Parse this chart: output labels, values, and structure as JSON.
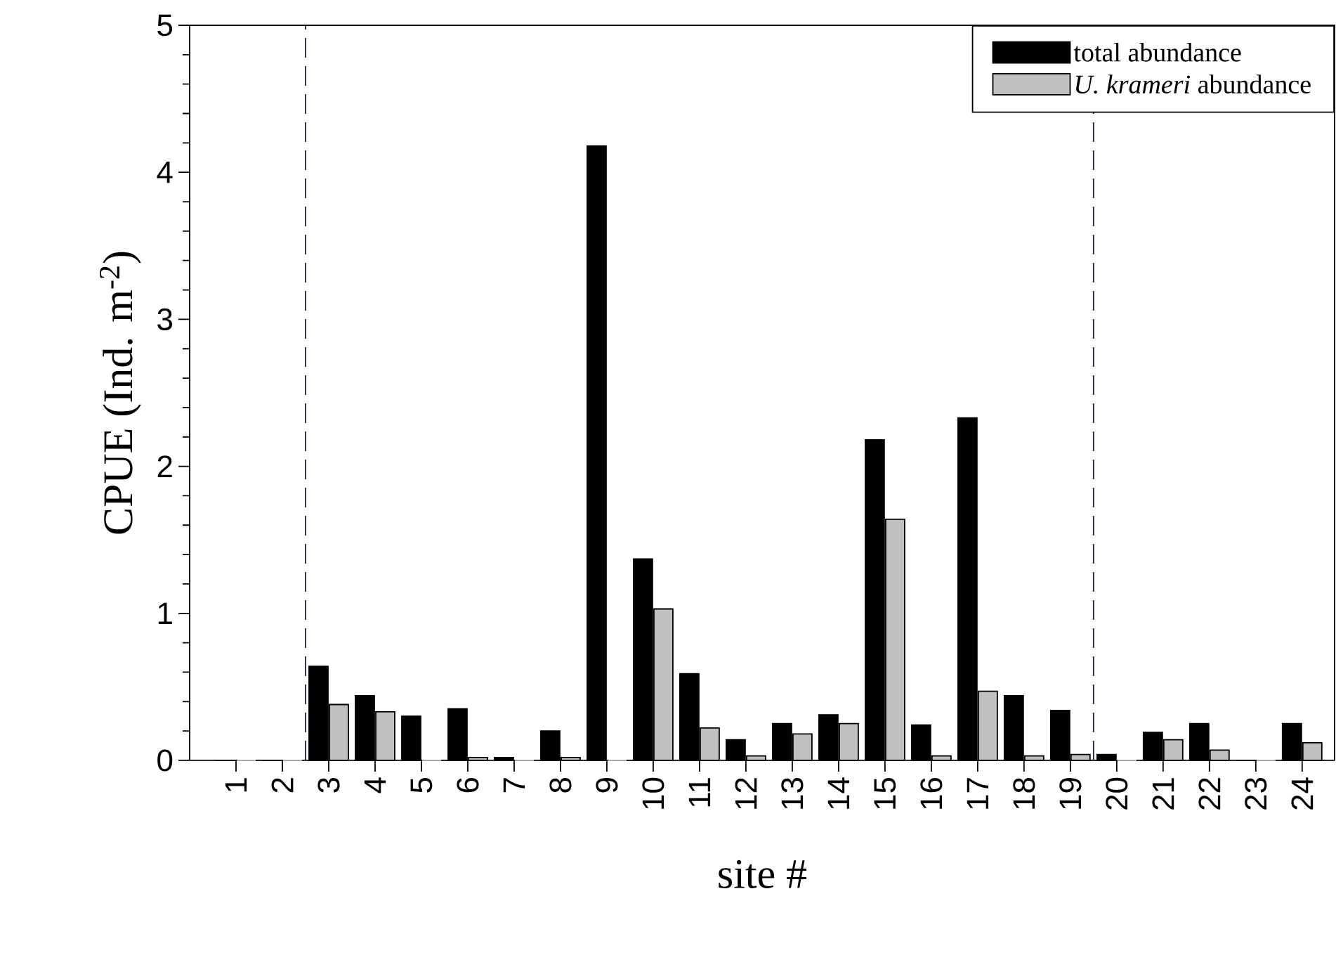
{
  "chart_data": {
    "type": "bar",
    "xlabel": "site #",
    "ylabel": "CPUE (Ind.  m$^{-2}$)",
    "x": [
      1,
      2,
      3,
      4,
      5,
      6,
      7,
      8,
      9,
      10,
      11,
      12,
      13,
      14,
      15,
      16,
      17,
      18,
      19,
      20,
      21,
      22,
      23,
      24
    ],
    "series": [
      {
        "name": "total abundance",
        "color": "#000000",
        "values": [
          0,
          0,
          0.64,
          0.44,
          0.3,
          0.35,
          0.02,
          0.2,
          4.18,
          1.37,
          0.59,
          0.14,
          0.25,
          0.31,
          2.18,
          0.24,
          2.33,
          0.44,
          0.34,
          0.04,
          0.19,
          0.25,
          0,
          0.25
        ]
      },
      {
        "name": "*U. krameri* abundance",
        "color": "#c0c0c0",
        "values": [
          0,
          0,
          0.38,
          0.33,
          0,
          0.02,
          0,
          0.02,
          0,
          1.03,
          0.22,
          0.03,
          0.18,
          0.25,
          1.64,
          0.03,
          0.47,
          0.03,
          0.04,
          0,
          0.14,
          0.07,
          0,
          0.12
        ]
      }
    ],
    "xlim": [
      0,
      24.7
    ],
    "ylim": [
      0,
      5
    ],
    "xticks": [
      1,
      2,
      3,
      4,
      5,
      6,
      7,
      8,
      9,
      10,
      11,
      12,
      13,
      14,
      15,
      16,
      17,
      18,
      19,
      20,
      21,
      22,
      23,
      24
    ],
    "yticks": [
      0,
      1,
      2,
      3,
      4,
      5
    ],
    "ref_lines": [
      {
        "axis": "x",
        "value": 2.5,
        "color": "#202040",
        "line_style": "dashed"
      },
      {
        "axis": "x",
        "value": 19.5,
        "color": "#202040",
        "line_style": "dashed"
      }
    ],
    "legend": "top right"
  }
}
